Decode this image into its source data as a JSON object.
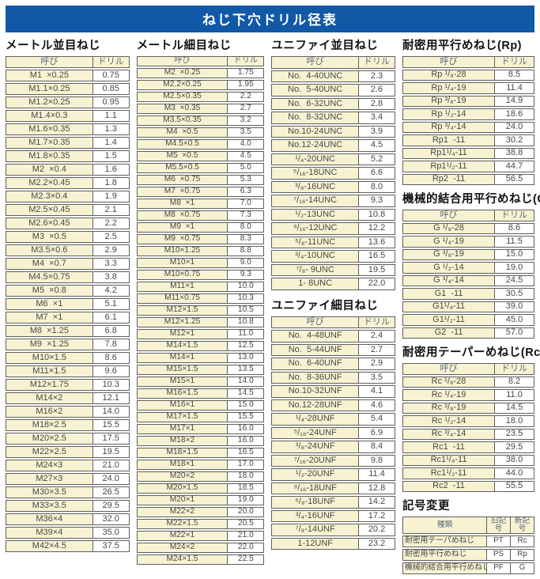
{
  "title": "ねじ下穴ドリル径表",
  "col_headers": {
    "name": "呼び",
    "drill": "ドリル"
  },
  "sections": {
    "metric_coarse": {
      "title": "メートル並目ねじ",
      "rows": [
        [
          "M1  ×0.25",
          "0.75"
        ],
        [
          "M1.1×0.25",
          "0.85"
        ],
        [
          "M1.2×0.25",
          "0.95"
        ],
        [
          "M1.4×0.3",
          "1.1"
        ],
        [
          "M1.6×0.35",
          "1.3"
        ],
        [
          "M1.7×0.35",
          "1.4"
        ],
        [
          "M1.8×0.35",
          "1.5"
        ],
        [
          "M2  ×0.4",
          "1.6"
        ],
        [
          "M2.2×0.45",
          "1.8"
        ],
        [
          "M2.3×0.4",
          "1.9"
        ],
        [
          "M2.5×0.45",
          "2.1"
        ],
        [
          "M2.6×0.45",
          "2.2"
        ],
        [
          "M3  ×0.5",
          "2.5"
        ],
        [
          "M3.5×0.6",
          "2.9"
        ],
        [
          "M4  ×0.7",
          "3.3"
        ],
        [
          "M4.5×0.75",
          "3.8"
        ],
        [
          "M5  ×0.8",
          "4.2"
        ],
        [
          "M6  ×1",
          "5.1"
        ],
        [
          "M7  ×1",
          "6.1"
        ],
        [
          "M8  ×1.25",
          "6.8"
        ],
        [
          "M9  ×1.25",
          "7.8"
        ],
        [
          "M10×1.5",
          "8.6"
        ],
        [
          "M11×1.5",
          "9.6"
        ],
        [
          "M12×1.75",
          "10.3"
        ],
        [
          "M14×2",
          "12.1"
        ],
        [
          "M16×2",
          "14.0"
        ],
        [
          "M18×2.5",
          "15.5"
        ],
        [
          "M20×2.5",
          "17.5"
        ],
        [
          "M22×2.5",
          "19.5"
        ],
        [
          "M24×3",
          "21.0"
        ],
        [
          "M27×3",
          "24.0"
        ],
        [
          "M30×3.5",
          "26.5"
        ],
        [
          "M33×3.5",
          "29.5"
        ],
        [
          "M36×4",
          "32.0"
        ],
        [
          "M39×4",
          "35.0"
        ],
        [
          "M42×4.5",
          "37.5"
        ]
      ]
    },
    "metric_fine": {
      "title": "メートル細目ねじ",
      "rows": [
        [
          "M2  ×0.25",
          "1.75"
        ],
        [
          "M2.2×0.25",
          "1.95"
        ],
        [
          "M2.5×0.35",
          "2.2"
        ],
        [
          "M3  ×0.35",
          "2.7"
        ],
        [
          "M3.5×0.35",
          "3.2"
        ],
        [
          "M4  ×0.5",
          "3.5"
        ],
        [
          "M4.5×0.5",
          "4.0"
        ],
        [
          "M5  ×0.5",
          "4.5"
        ],
        [
          "M5.5×0.5",
          "5.0"
        ],
        [
          "M6  ×0.75",
          "5.3"
        ],
        [
          "M7  ×0.75",
          "6.3"
        ],
        [
          "M8  ×1",
          "7.0"
        ],
        [
          "M8  ×0.75",
          "7.3"
        ],
        [
          "M9  ×1",
          "8.0"
        ],
        [
          "M9  ×0.75",
          "8.3"
        ],
        [
          "M10×1.25",
          "8.8"
        ],
        [
          "M10×1",
          "9.0"
        ],
        [
          "M10×0.75",
          "9.3"
        ],
        [
          "M11×1",
          "10.0"
        ],
        [
          "M11×0.75",
          "10.3"
        ],
        [
          "M12×1.5",
          "10.5"
        ],
        [
          "M12×1.25",
          "10.8"
        ],
        [
          "M12×1",
          "11.0"
        ],
        [
          "M14×1.5",
          "12.5"
        ],
        [
          "M14×1",
          "13.0"
        ],
        [
          "M15×1.5",
          "13.5"
        ],
        [
          "M15×1",
          "14.0"
        ],
        [
          "M16×1.5",
          "14.5"
        ],
        [
          "M16×1",
          "15.0"
        ],
        [
          "M17×1.5",
          "15.5"
        ],
        [
          "M17×1",
          "16.0"
        ],
        [
          "M18×2",
          "16.0"
        ],
        [
          "M18×1.5",
          "16.5"
        ],
        [
          "M18×1",
          "17.0"
        ],
        [
          "M20×2",
          "18.0"
        ],
        [
          "M20×1.5",
          "18.5"
        ],
        [
          "M20×1",
          "19.0"
        ],
        [
          "M22×2",
          "20.0"
        ],
        [
          "M22×1.5",
          "20.5"
        ],
        [
          "M22×1",
          "21.0"
        ],
        [
          "M24×2",
          "22.0"
        ],
        [
          "M24×1.5",
          "22.5"
        ]
      ]
    },
    "unified_coarse": {
      "title": "ユニファイ並目ねじ",
      "rows": [
        [
          "No.  4-40UNC",
          "2.3"
        ],
        [
          "No.  5-40UNC",
          "2.6"
        ],
        [
          "No.  6-32UNC",
          "2.8"
        ],
        [
          "No.  8-32UNC",
          "3.4"
        ],
        [
          "No.10-24UNC",
          "3.9"
        ],
        [
          "No.12-24UNC",
          "4.5"
        ],
        [
          "¹/₄-20UNC",
          "5.2"
        ],
        [
          "⁵/₁₆-18UNC",
          "6.6"
        ],
        [
          "³/₈-16UNC",
          "8.0"
        ],
        [
          "⁷/₁₆-14UNC",
          "9.3"
        ],
        [
          "¹/₂-13UNC",
          "10.8"
        ],
        [
          "⁹/₁₆-12UNC",
          "12.2"
        ],
        [
          "⁵/₈-11UNC",
          "13.6"
        ],
        [
          "³/₄-10UNC",
          "16.5"
        ],
        [
          "⁷/₈- 9UNC",
          "19.5"
        ],
        [
          "1- 8UNC",
          "22.0"
        ]
      ]
    },
    "unified_fine": {
      "title": "ユニファイ細目ねじ",
      "rows": [
        [
          "No.  4-48UNF",
          "2.4"
        ],
        [
          "No.  5-44UNF",
          "2.7"
        ],
        [
          "No.  6-40UNF",
          "2.9"
        ],
        [
          "No.  8-36UNF",
          "3.5"
        ],
        [
          "No.10-32UNF",
          "4.1"
        ],
        [
          "No.12-28UNF",
          "4.6"
        ],
        [
          "¹/₄-28UNF",
          "5.4"
        ],
        [
          "⁵/₁₆-24UNF",
          "6.9"
        ],
        [
          "³/₈-24UNF",
          "8.4"
        ],
        [
          "⁷/₁₆-20UNF",
          "9.8"
        ],
        [
          "¹/₂-20UNF",
          "11.4"
        ],
        [
          "⁹/₁₆-18UNF",
          "12.8"
        ],
        [
          "⁵/₈-18UNF",
          "14.2"
        ],
        [
          "³/₄-16UNF",
          "17.2"
        ],
        [
          "⁷/₈-14UNF",
          "20.2"
        ],
        [
          "1-12UNF",
          "23.2"
        ]
      ]
    },
    "rp": {
      "title": "耐密用平行めねじ(Rp)",
      "rows": [
        [
          "Rp ¹/₈-28",
          "8.5"
        ],
        [
          "Rp ¹/₄-19",
          "11.4"
        ],
        [
          "Rp ³/₈-19",
          "14.9"
        ],
        [
          "Rp ¹/₂-14",
          "18.6"
        ],
        [
          "Rp ³/₄-14",
          "24.0"
        ],
        [
          "Rp1  -11",
          "30.2"
        ],
        [
          "Rp1¹/₄-11",
          "38.8"
        ],
        [
          "Rp1¹/₂-11",
          "44.7"
        ],
        [
          "Rp2  -11",
          "56.5"
        ]
      ]
    },
    "g": {
      "title": "機械的結合用平行めねじ(G)",
      "rows": [
        [
          "G ¹/₈-28",
          "8.6"
        ],
        [
          "G ¹/₄-19",
          "11.5"
        ],
        [
          "G ³/₈-19",
          "15.0"
        ],
        [
          "G ¹/₂-14",
          "19.0"
        ],
        [
          "G ³/₄-14",
          "24.5"
        ],
        [
          "G1  -11",
          "30.5"
        ],
        [
          "G1¹/₄-11",
          "39.0"
        ],
        [
          "G1¹/₂-11",
          "45.0"
        ],
        [
          "G2  -11",
          "57.0"
        ]
      ]
    },
    "rc": {
      "title": "耐密用テーパーめねじ(Rc)",
      "rows": [
        [
          "Rc ¹/₈-28",
          "8.2"
        ],
        [
          "Rc ¹/₄-19",
          "11.0"
        ],
        [
          "Rc ³/₈-19",
          "14.5"
        ],
        [
          "Rc ¹/₂-14",
          "18.0"
        ],
        [
          "Rc ³/₄-14",
          "23.5"
        ],
        [
          "Rc1  -11",
          "29.5"
        ],
        [
          "Rc1¹/₄-11",
          "38.0"
        ],
        [
          "Rc1¹/₂-11",
          "44.0"
        ],
        [
          "Rc2  -11",
          "55.5"
        ]
      ]
    }
  },
  "symbol_change": {
    "title": "記号変更",
    "headers": [
      "種類",
      "旧記号",
      "新記号"
    ],
    "rows": [
      [
        "耐密用テーパめねじ",
        "PT",
        "Rc"
      ],
      [
        "耐密用平行めねじ",
        "PS",
        "Rp"
      ],
      [
        "機械的結合用平行めねじ",
        "PF",
        "G"
      ]
    ]
  },
  "colors": {
    "header_bar": "#1158a7",
    "cell_cream": "#f7f3d2",
    "border": "#5f5f5f",
    "header_text": "#5a6a7e",
    "cell_text": "#474747"
  }
}
